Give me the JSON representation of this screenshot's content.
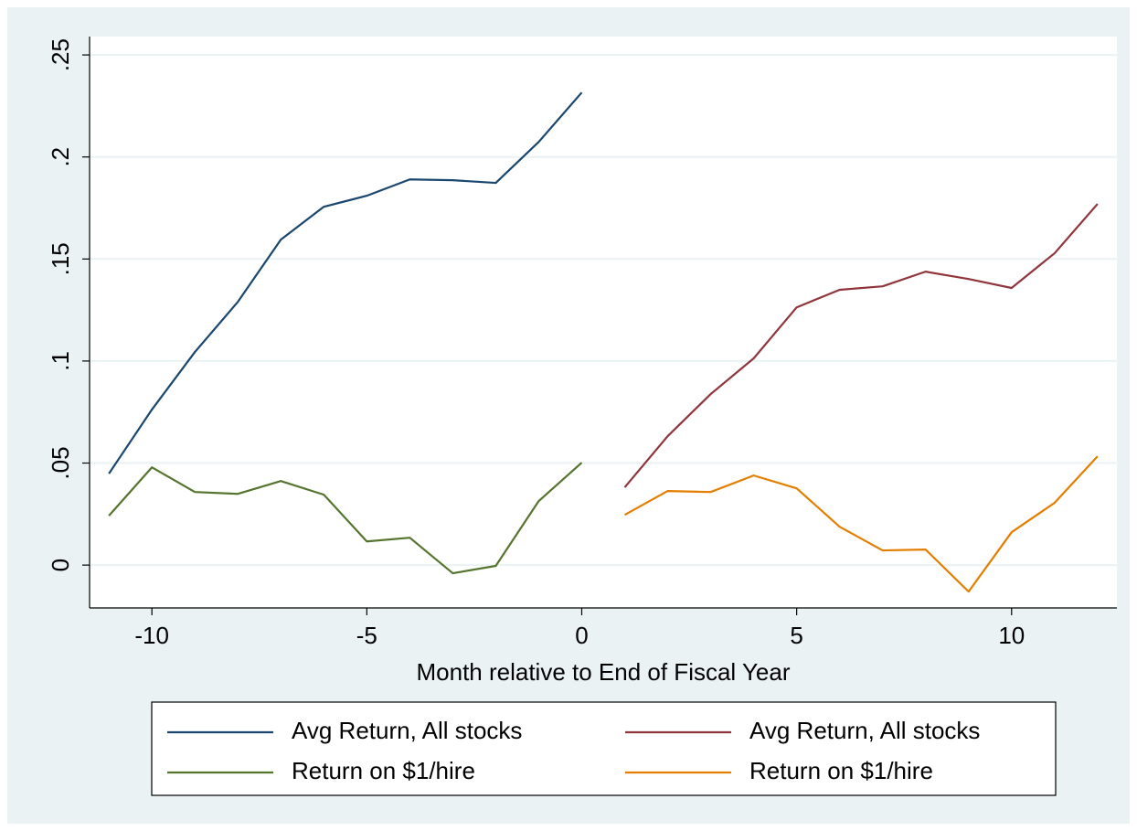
{
  "chart_data": {
    "type": "line",
    "xlabel": "Month relative to End of Fiscal Year",
    "xlim": [
      -11.45,
      12.45
    ],
    "ylim": [
      -0.021,
      0.259
    ],
    "xticks": [
      -10,
      -5,
      0,
      5,
      10
    ],
    "yticks": [
      0,
      {
        "value": 0.05,
        "label": ".05"
      },
      {
        "value": 0.1,
        "label": ".1"
      },
      {
        "value": 0.15,
        "label": ".15"
      },
      {
        "value": 0.2,
        "label": ".2"
      },
      {
        "value": 0.25,
        "label": ".25"
      }
    ],
    "grid": true,
    "legend": "bottom",
    "series": [
      {
        "name": "Avg Return, All stocks",
        "color": "#1a476f",
        "x": [
          -11,
          -10,
          -9,
          -8,
          -7,
          -6,
          -5,
          -4,
          -3,
          -2,
          -1,
          0
        ],
        "values": [
          0.0448,
          0.0762,
          0.1044,
          0.129,
          0.1595,
          0.1756,
          0.181,
          0.189,
          0.1886,
          0.1873,
          0.2074,
          0.2316
        ]
      },
      {
        "name": "Avg Return, All stocks",
        "color": "#90353b",
        "x": [
          1,
          2,
          3,
          4,
          5,
          6,
          7,
          8,
          9,
          10,
          11,
          12
        ],
        "values": [
          0.0381,
          0.0632,
          0.0838,
          0.1013,
          0.1263,
          0.1349,
          0.1366,
          0.1438,
          0.1402,
          0.1358,
          0.1528,
          0.177
        ]
      },
      {
        "name": "Return on $1/hire",
        "color": "#55752f",
        "x": [
          -11,
          -10,
          -9,
          -8,
          -7,
          -6,
          -5,
          -4,
          -3,
          -2,
          -1,
          0
        ],
        "values": [
          0.0242,
          0.0479,
          0.0358,
          0.0349,
          0.0412,
          0.0345,
          0.0116,
          0.0134,
          -0.004,
          -0.0004,
          0.0314,
          0.0502
        ]
      },
      {
        "name": "Return on $1/hire",
        "color": "#e37e00",
        "x": [
          1,
          2,
          3,
          4,
          5,
          6,
          7,
          8,
          9,
          10,
          11,
          12
        ],
        "values": [
          0.0246,
          0.0363,
          0.0358,
          0.0439,
          0.0376,
          0.0188,
          0.0072,
          0.0076,
          -0.013,
          0.0161,
          0.0305,
          0.0533
        ]
      }
    ]
  }
}
